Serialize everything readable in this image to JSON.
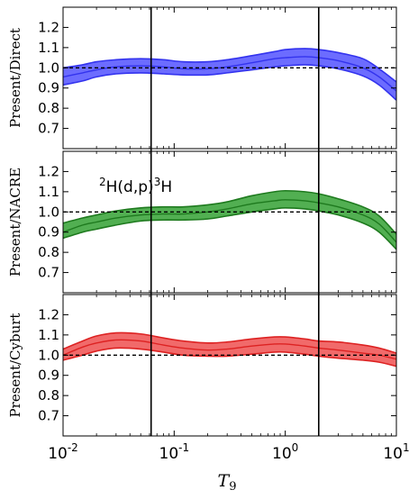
{
  "chart_data": {
    "type": "area",
    "xlabel": "T",
    "xlabel_sub": "9",
    "xscale": "log",
    "xlim": [
      0.01,
      10
    ],
    "x_ticks": [
      {
        "base": "10",
        "exp": "-2"
      },
      {
        "base": "10",
        "exp": "-1"
      },
      {
        "base": "10",
        "exp": "0"
      },
      {
        "base": "10",
        "exp": "1"
      }
    ],
    "y_tick_labels": [
      "0.7",
      "0.8",
      "0.9",
      "1.0",
      "1.1",
      "1.2"
    ],
    "y_tick_values": [
      0.7,
      0.8,
      0.9,
      1.0,
      1.1,
      1.2
    ],
    "ylim": [
      0.6,
      1.3
    ],
    "reference_line": 1.0,
    "vertical_lines": [
      0.062,
      2.0
    ],
    "annotation": {
      "sup1": "2",
      "mid": "H(d,p)",
      "sup2": "3",
      "end": "H"
    },
    "x": [
      0.01,
      0.015,
      0.02,
      0.03,
      0.05,
      0.08,
      0.12,
      0.2,
      0.3,
      0.5,
      0.8,
      1.0,
      1.5,
      2.0,
      3.0,
      5.0,
      7.0,
      10.0
    ],
    "panels": [
      {
        "ylabel": "Present/Direct",
        "color": "#3333ee",
        "fill": "#5c5cff",
        "center": [
          0.955,
          0.975,
          0.99,
          1.005,
          1.01,
          1.005,
          0.995,
          0.995,
          1.005,
          1.025,
          1.045,
          1.05,
          1.055,
          1.05,
          1.035,
          1.0,
          0.955,
          0.885
        ],
        "lower": [
          0.915,
          0.935,
          0.955,
          0.97,
          0.975,
          0.97,
          0.965,
          0.965,
          0.975,
          0.99,
          1.005,
          1.01,
          1.015,
          1.01,
          0.995,
          0.96,
          0.915,
          0.84
        ],
        "upper": [
          1.0,
          1.015,
          1.03,
          1.04,
          1.045,
          1.04,
          1.03,
          1.03,
          1.04,
          1.06,
          1.08,
          1.09,
          1.095,
          1.09,
          1.075,
          1.045,
          0.995,
          0.93
        ]
      },
      {
        "ylabel": "Present/NACRE",
        "color": "#1e7a1e",
        "fill": "#3fa63f",
        "center": [
          0.9,
          0.935,
          0.95,
          0.97,
          0.985,
          0.99,
          0.99,
          1.0,
          1.015,
          1.04,
          1.055,
          1.06,
          1.055,
          1.045,
          1.025,
          0.985,
          0.94,
          0.85
        ],
        "lower": [
          0.87,
          0.9,
          0.915,
          0.935,
          0.955,
          0.96,
          0.96,
          0.965,
          0.98,
          1.0,
          1.015,
          1.02,
          1.015,
          1.005,
          0.985,
          0.945,
          0.9,
          0.815
        ],
        "upper": [
          0.945,
          0.97,
          0.985,
          1.005,
          1.02,
          1.025,
          1.025,
          1.035,
          1.05,
          1.08,
          1.1,
          1.105,
          1.1,
          1.09,
          1.065,
          1.025,
          0.98,
          0.89
        ]
      },
      {
        "ylabel": "Present/Cyburt",
        "color": "#dd2222",
        "fill": "#f05a5a",
        "center": [
          1.0,
          1.04,
          1.06,
          1.075,
          1.07,
          1.05,
          1.035,
          1.025,
          1.03,
          1.045,
          1.055,
          1.055,
          1.045,
          1.035,
          1.025,
          1.01,
          1.0,
          0.98
        ],
        "lower": [
          0.975,
          1.0,
          1.02,
          1.035,
          1.03,
          1.015,
          1.0,
          0.995,
          0.995,
          1.005,
          1.015,
          1.015,
          1.005,
          0.995,
          0.985,
          0.975,
          0.965,
          0.945
        ],
        "upper": [
          1.03,
          1.07,
          1.095,
          1.11,
          1.105,
          1.085,
          1.07,
          1.06,
          1.065,
          1.08,
          1.09,
          1.09,
          1.08,
          1.07,
          1.065,
          1.05,
          1.035,
          1.01
        ]
      }
    ]
  }
}
